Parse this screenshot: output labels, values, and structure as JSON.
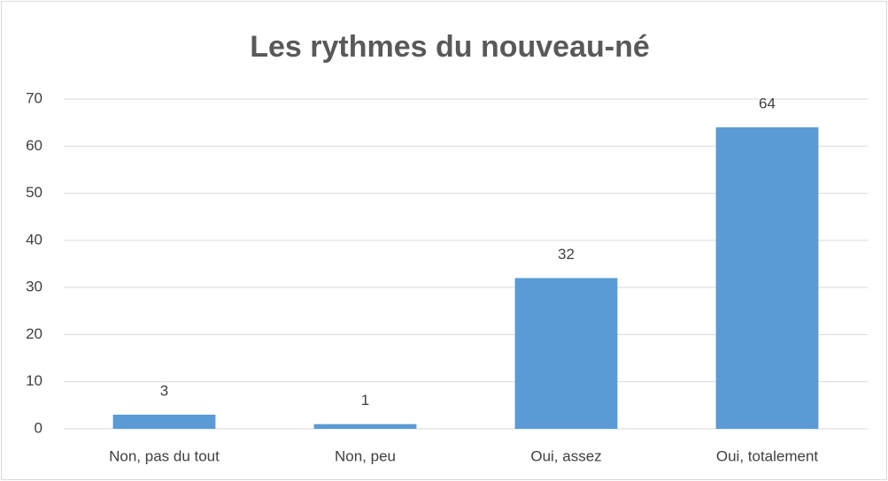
{
  "chart_data": {
    "type": "bar",
    "title": "Les rythmes du nouveau-né",
    "categories": [
      "Non, pas du tout",
      "Non, peu",
      "Oui, assez",
      "Oui, totalement"
    ],
    "values": [
      3,
      1,
      32,
      64
    ],
    "color": "#5b9bd5",
    "ylim": [
      0,
      70
    ],
    "yticks": [
      0,
      10,
      20,
      30,
      40,
      50,
      60,
      70
    ],
    "grid": true
  }
}
